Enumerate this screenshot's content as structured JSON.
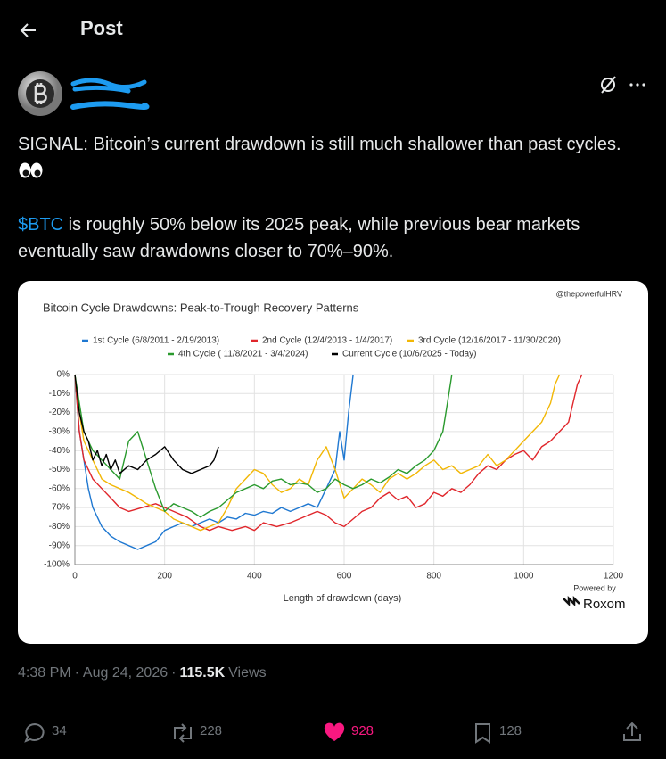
{
  "header": {
    "title": "Post"
  },
  "post": {
    "paragraphs": [
      [
        "SIGNAL: Bitcoin’s current drawdown is still much shallower than past cycles."
      ],
      [
        "$BTC",
        " is roughly 50% below its 2025 peak, while previous bear markets eventually saw drawdowns closer to 70%–90%."
      ]
    ]
  },
  "chart_data": {
    "type": "line",
    "title": "Bitcoin Cycle Drawdowns: Peak-to-Trough Recovery Patterns",
    "source": "@thepowerfulHRV",
    "xlabel": "Length of drawdown (days)",
    "powered_by": "Powered by",
    "brand": "Roxom",
    "xlim": [
      0,
      1200
    ],
    "xticks": [
      0,
      200,
      400,
      600,
      800,
      1000,
      1200
    ],
    "ylim": [
      -100,
      0
    ],
    "yticks": [
      {
        "value": 0,
        "label": "0%"
      },
      {
        "value": -10,
        "label": "-10%"
      },
      {
        "value": -20,
        "label": "-20%"
      },
      {
        "value": -30,
        "label": "-30%"
      },
      {
        "value": -40,
        "label": "-40%"
      },
      {
        "value": -50,
        "label": "-50%"
      },
      {
        "value": -60,
        "label": "-60%"
      },
      {
        "value": -70,
        "label": "-70%"
      },
      {
        "value": -80,
        "label": "-80%"
      },
      {
        "value": -90,
        "label": "-90%"
      },
      {
        "value": -100,
        "label": "-100%"
      }
    ],
    "grid": true,
    "series": [
      {
        "name": "1st Cycle (6/8/2011 - 2/19/2013)",
        "color": "#1f78d1",
        "x": [
          0,
          10,
          20,
          30,
          40,
          50,
          60,
          80,
          100,
          120,
          140,
          160,
          180,
          200,
          220,
          240,
          260,
          280,
          300,
          320,
          340,
          360,
          380,
          400,
          420,
          440,
          460,
          480,
          500,
          520,
          540,
          560,
          580,
          590,
          600,
          610,
          620
        ],
        "values": [
          0,
          -30,
          -45,
          -60,
          -70,
          -75,
          -80,
          -85,
          -88,
          -90,
          -92,
          -90,
          -88,
          -82,
          -80,
          -78,
          -80,
          -78,
          -76,
          -78,
          -75,
          -76,
          -73,
          -74,
          -72,
          -73,
          -70,
          -72,
          -70,
          -68,
          -70,
          -60,
          -50,
          -30,
          -45,
          -20,
          0
        ]
      },
      {
        "name": "2nd Cycle (12/4/2013 - 1/4/2017)",
        "color": "#e0262b",
        "x": [
          0,
          10,
          20,
          40,
          60,
          80,
          100,
          120,
          150,
          180,
          200,
          220,
          250,
          280,
          300,
          320,
          350,
          380,
          400,
          420,
          450,
          480,
          500,
          520,
          540,
          560,
          580,
          600,
          620,
          640,
          660,
          680,
          700,
          720,
          740,
          760,
          780,
          800,
          820,
          840,
          860,
          880,
          900,
          920,
          940,
          960,
          980,
          1000,
          1020,
          1040,
          1060,
          1080,
          1100,
          1110,
          1120,
          1130
        ],
        "values": [
          0,
          -30,
          -45,
          -55,
          -60,
          -65,
          -70,
          -72,
          -70,
          -68,
          -70,
          -72,
          -75,
          -80,
          -82,
          -80,
          -82,
          -80,
          -82,
          -78,
          -80,
          -78,
          -76,
          -74,
          -72,
          -74,
          -78,
          -80,
          -76,
          -72,
          -70,
          -65,
          -62,
          -66,
          -64,
          -70,
          -68,
          -62,
          -64,
          -60,
          -62,
          -58,
          -52,
          -48,
          -50,
          -45,
          -42,
          -40,
          -45,
          -38,
          -35,
          -30,
          -25,
          -15,
          -5,
          0
        ]
      },
      {
        "name": "3rd Cycle (12/16/2017 - 11/30/2020)",
        "color": "#f2b705",
        "x": [
          0,
          10,
          20,
          40,
          60,
          80,
          100,
          120,
          140,
          160,
          180,
          200,
          220,
          240,
          260,
          280,
          300,
          320,
          340,
          360,
          380,
          400,
          420,
          440,
          460,
          480,
          500,
          520,
          540,
          560,
          580,
          600,
          620,
          640,
          660,
          680,
          700,
          720,
          740,
          760,
          780,
          800,
          820,
          840,
          860,
          880,
          900,
          920,
          940,
          960,
          980,
          1000,
          1020,
          1040,
          1060,
          1070,
          1080
        ],
        "values": [
          0,
          -20,
          -35,
          -45,
          -55,
          -58,
          -60,
          -62,
          -65,
          -68,
          -70,
          -72,
          -76,
          -78,
          -80,
          -82,
          -80,
          -78,
          -70,
          -60,
          -55,
          -50,
          -52,
          -58,
          -62,
          -60,
          -55,
          -58,
          -45,
          -38,
          -50,
          -65,
          -60,
          -55,
          -58,
          -62,
          -55,
          -52,
          -55,
          -52,
          -48,
          -45,
          -50,
          -48,
          -52,
          -50,
          -48,
          -42,
          -48,
          -45,
          -40,
          -35,
          -30,
          -25,
          -15,
          -5,
          0
        ]
      },
      {
        "name": "4th Cycle ( 11/8/2021 - 3/4/2024)",
        "color": "#2a9a2e",
        "x": [
          0,
          10,
          20,
          40,
          60,
          80,
          100,
          120,
          140,
          160,
          180,
          200,
          220,
          240,
          260,
          280,
          300,
          320,
          340,
          360,
          380,
          400,
          420,
          440,
          460,
          480,
          500,
          520,
          540,
          560,
          580,
          600,
          620,
          640,
          660,
          680,
          700,
          720,
          740,
          760,
          780,
          800,
          820,
          830,
          840
        ],
        "values": [
          0,
          -15,
          -30,
          -40,
          -45,
          -50,
          -55,
          -35,
          -30,
          -45,
          -60,
          -72,
          -68,
          -70,
          -72,
          -75,
          -72,
          -70,
          -66,
          -62,
          -60,
          -58,
          -60,
          -56,
          -55,
          -58,
          -57,
          -58,
          -62,
          -60,
          -55,
          -58,
          -60,
          -58,
          -55,
          -57,
          -54,
          -50,
          -52,
          -48,
          -45,
          -40,
          -30,
          -15,
          0
        ]
      },
      {
        "name": "Current Cycle (10/6/2025 - Today)",
        "color": "#000000",
        "x": [
          0,
          5,
          10,
          20,
          30,
          40,
          50,
          60,
          70,
          80,
          90,
          100,
          120,
          140,
          160,
          180,
          200,
          220,
          240,
          260,
          280,
          300,
          310,
          320
        ],
        "values": [
          0,
          -10,
          -20,
          -30,
          -35,
          -45,
          -40,
          -48,
          -42,
          -50,
          -45,
          -52,
          -48,
          -50,
          -45,
          -42,
          -38,
          -45,
          -50,
          -52,
          -50,
          -48,
          -45,
          -38
        ]
      }
    ]
  },
  "meta": {
    "time": "4:38 PM",
    "separator": "·",
    "date": "Aug 24, 2026",
    "views": "115.5K",
    "views_label": "Views"
  },
  "actions": {
    "replies": 34,
    "reposts": 228,
    "likes": 928,
    "bookmarks": 128
  }
}
